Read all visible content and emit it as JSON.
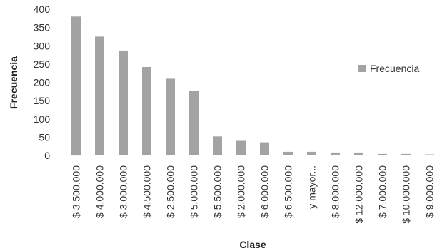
{
  "chart_data": {
    "type": "bar",
    "categories": [
      "$ 3.500.000",
      "$ 4.000.000",
      "$ 3.000.000",
      "$ 4.500.000",
      "$ 2.500.000",
      "$ 5.000.000",
      "$ 5.500.000",
      "$ 2.000.000",
      "$ 6.000.000",
      "$ 6.500.000",
      "y mayor...",
      "$ 8.000.000",
      "$ 12.000.000",
      "$ 7.000.000",
      "$ 10.000.000",
      "$ 9.000.000"
    ],
    "series": [
      {
        "name": "Frecuencia",
        "values": [
          380,
          325,
          287,
          242,
          210,
          176,
          52,
          40,
          36,
          10,
          10,
          8,
          8,
          4,
          4,
          3
        ]
      }
    ],
    "title": "",
    "xlabel": "Clase",
    "ylabel": "Frecuencia",
    "ylim": [
      0,
      400
    ],
    "yticks": [
      0,
      50,
      100,
      150,
      200,
      250,
      300,
      350,
      400
    ],
    "grid": false,
    "legend": "right",
    "colors": {
      "bar": "#a3a3a3",
      "background": "#ffffff",
      "text": "#333333"
    }
  }
}
